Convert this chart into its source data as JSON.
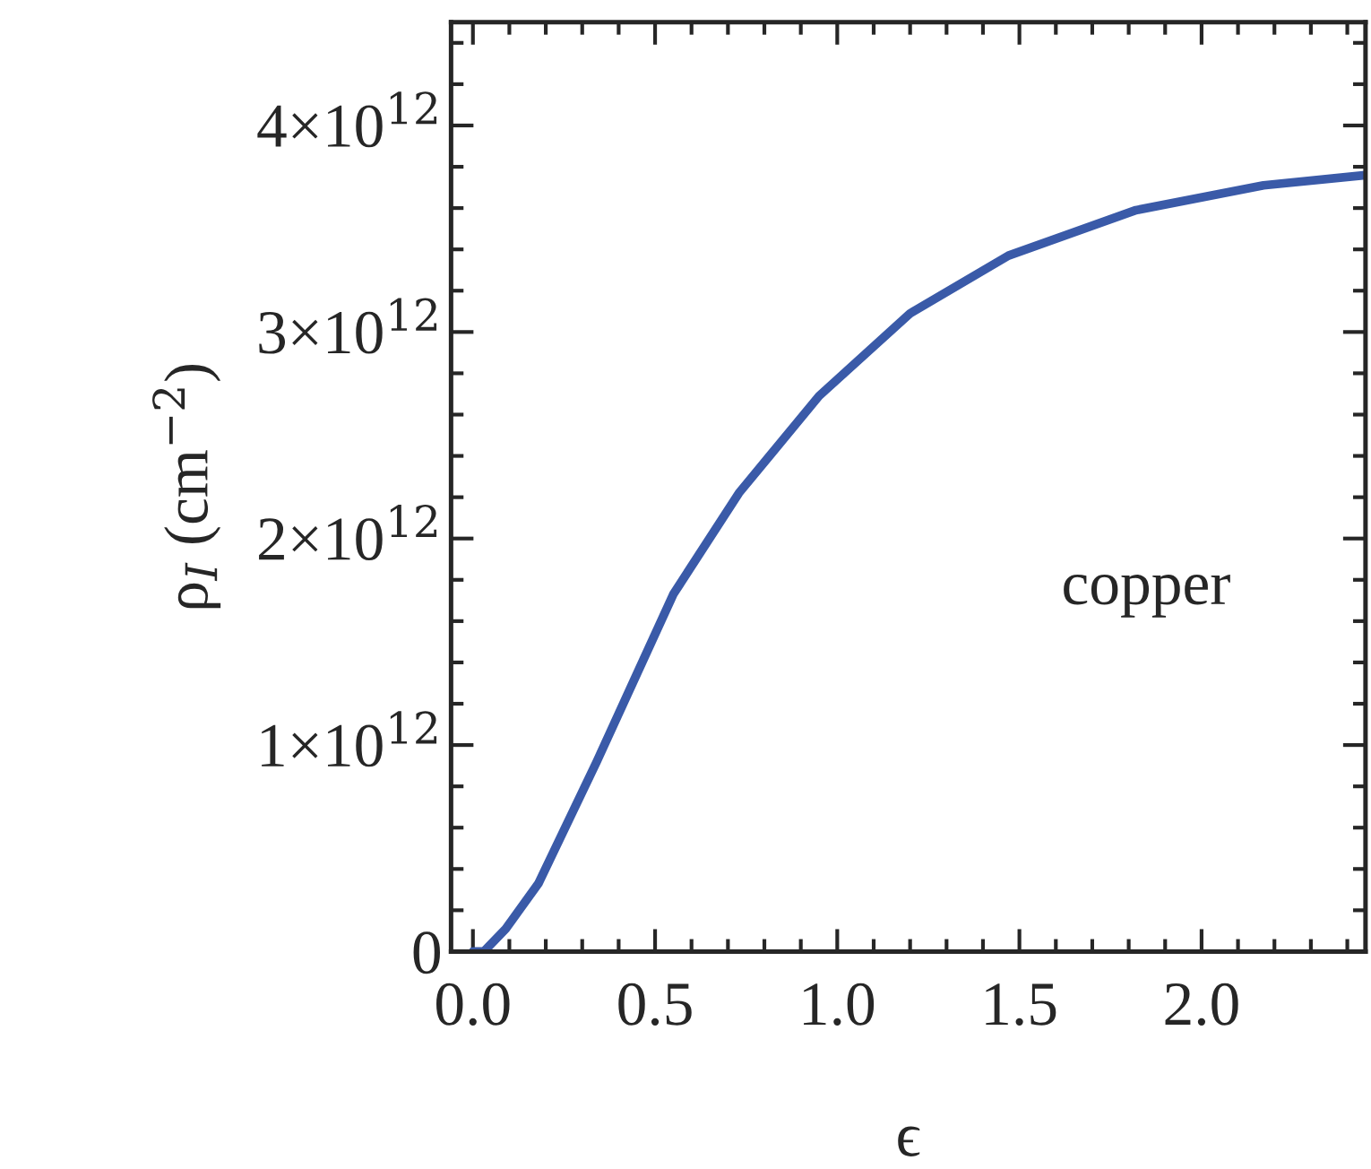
{
  "chart_data": {
    "type": "line",
    "xlabel": "ϵ",
    "ylabel": "ρ$_{I}$ (cm$^{−2}$)",
    "x": [
      0.0,
      0.03,
      0.09,
      0.18,
      0.34,
      0.55,
      0.73,
      0.95,
      1.2,
      1.47,
      1.82,
      2.17,
      2.45
    ],
    "series": [
      {
        "color": "#3a5aa8",
        "values": [
          0,
          0,
          110000000000.0,
          330000000000.0,
          920000000000.0,
          1730000000000.0,
          2220000000000.0,
          2690000000000.0,
          3090000000000.0,
          3370000000000.0,
          3590000000000.0,
          3710000000000.0,
          3760000000000.0
        ]
      }
    ],
    "xlim": [
      -0.06,
      2.45
    ],
    "ylim": [
      0,
      4500000000000.0
    ],
    "xticks": [
      {
        "value": 0,
        "label": "0.0"
      },
      0.5,
      {
        "value": 1,
        "label": "1.0"
      },
      1.5,
      {
        "value": 2,
        "label": "2.0"
      }
    ],
    "yticks": [
      0,
      {
        "value": 1000000000000.0,
        "label": "1×10$^{12}$"
      },
      {
        "value": 2000000000000.0,
        "label": "2×10$^{12}$"
      },
      {
        "value": 3000000000000.0,
        "label": "3×10$^{12}$"
      },
      {
        "value": 4000000000000.0,
        "label": "4×10$^{12}$"
      }
    ],
    "annotations": [
      "copper"
    ],
    "grid": false,
    "line_style": "solid",
    "marker": "none"
  }
}
